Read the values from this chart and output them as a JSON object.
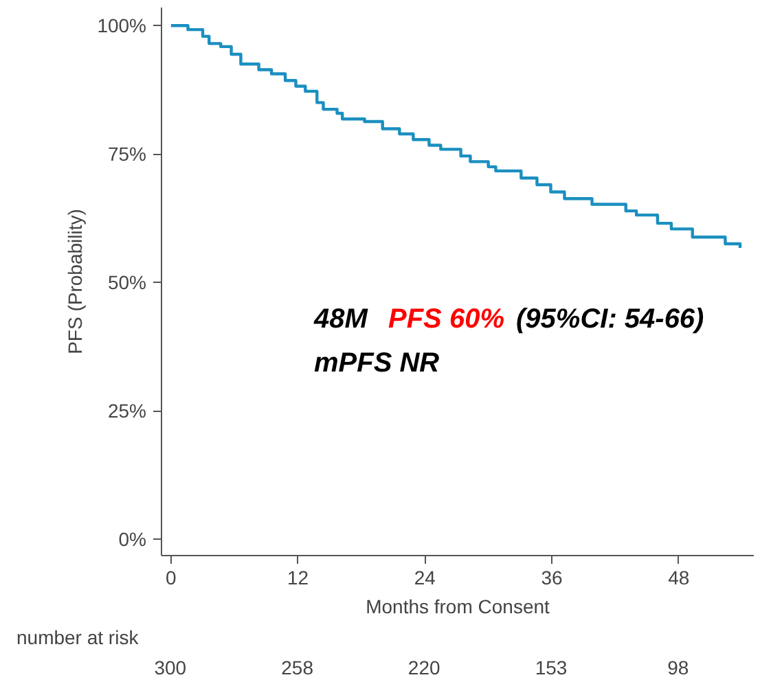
{
  "chart_data": {
    "type": "step",
    "xlabel": "Months from Consent",
    "ylabel": "PFS (Probability)",
    "x": [
      0,
      1.2,
      1.6,
      3,
      3.6,
      4.7,
      5.7,
      6.6,
      8.3,
      9.5,
      10.8,
      11.8,
      12.7,
      13.8,
      14.4,
      15.7,
      16.2,
      18.3,
      20,
      21.6,
      22.9,
      24.4,
      25.5,
      27.4,
      28.3,
      30,
      30.7,
      33.1,
      34.6,
      35.9,
      37.2,
      39.8,
      43,
      44,
      46,
      47.3,
      49.3,
      52.4,
      53.8
    ],
    "series": [
      {
        "color": "#1b8fc0",
        "values": [
          100,
          100,
          99.2,
          97.9,
          96.5,
          95.9,
          94.4,
          92.5,
          91.4,
          90.6,
          89.3,
          88.2,
          87.2,
          85,
          83.7,
          82.9,
          81.8,
          81.3,
          79.9,
          78.9,
          77.8,
          76.7,
          75.9,
          74.6,
          73.5,
          72.5,
          71.7,
          70.3,
          69,
          67.6,
          66.3,
          65.2,
          63.9,
          63.1,
          61.5,
          60.4,
          58.8,
          57.5,
          56.7
        ]
      }
    ],
    "xlim": [
      -0.9,
      55.1
    ],
    "ylim": [
      -3.2,
      103.5
    ],
    "xticks": [
      0,
      12,
      24,
      36,
      48
    ],
    "yticks": [
      {
        "value": 0,
        "label": "0%"
      },
      {
        "value": 25,
        "label": "25%"
      },
      {
        "value": 50,
        "label": "50%"
      },
      {
        "value": 75,
        "label": "75%"
      },
      {
        "value": 100,
        "label": "100%"
      }
    ],
    "grid": false,
    "annotations": [
      "48M",
      "PFS 60%",
      "(95%CI: 54-66)",
      "mPFS NR",
      "number at risk",
      "300",
      "258",
      "220",
      "153",
      "98"
    ]
  }
}
